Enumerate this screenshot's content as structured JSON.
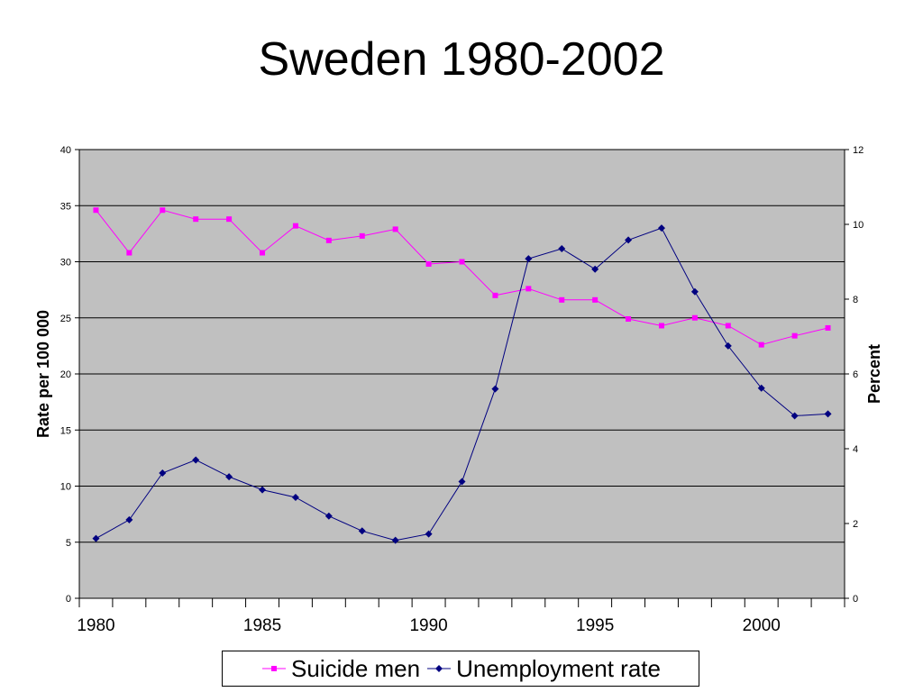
{
  "chart_data": {
    "type": "line",
    "title": "Sweden 1980-2002",
    "ylabel": "Rate per 100 000",
    "y2label": "Percent",
    "ylim": [
      0,
      40
    ],
    "y2lim": [
      0,
      12
    ],
    "yticks": [
      0,
      5,
      10,
      15,
      20,
      25,
      30,
      35,
      40
    ],
    "y2ticks": [
      0,
      2,
      4,
      6,
      8,
      10,
      12
    ],
    "x": [
      1980,
      1981,
      1982,
      1983,
      1984,
      1985,
      1986,
      1987,
      1988,
      1989,
      1990,
      1991,
      1992,
      1993,
      1994,
      1995,
      1996,
      1997,
      1998,
      1999,
      2000,
      2001,
      2002
    ],
    "xticks": [
      1980,
      1985,
      1990,
      1995,
      2000
    ],
    "grid": true,
    "legend_position": "bottom",
    "series": [
      {
        "name": "Suicide men",
        "axis": "left",
        "color": "#ff00ff",
        "marker": "square",
        "values": [
          34.6,
          30.8,
          34.6,
          33.8,
          33.8,
          30.8,
          33.2,
          31.9,
          32.3,
          32.9,
          29.8,
          30.0,
          27.0,
          27.6,
          26.6,
          26.6,
          24.9,
          24.3,
          25.0,
          24.3,
          22.6,
          23.4,
          24.1
        ]
      },
      {
        "name": "Unemployment rate",
        "axis": "right",
        "color": "#000080",
        "marker": "diamond",
        "values": [
          1.6,
          2.1,
          3.35,
          3.7,
          3.25,
          2.9,
          2.7,
          2.2,
          1.8,
          1.55,
          1.72,
          3.12,
          5.6,
          9.08,
          9.35,
          8.8,
          9.58,
          9.9,
          8.2,
          6.75,
          5.62,
          4.88,
          4.93
        ]
      }
    ]
  }
}
